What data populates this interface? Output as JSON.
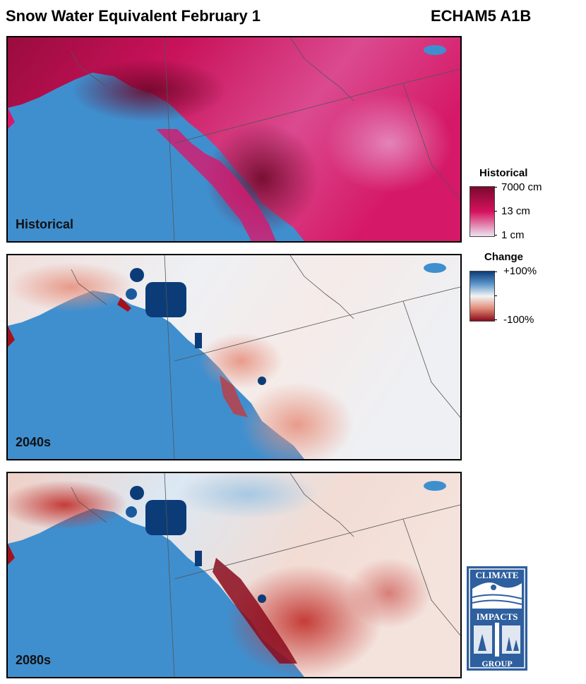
{
  "header": {
    "title": "Snow Water Equivalent February 1",
    "model": "ECHAM5 A1B"
  },
  "panels": [
    {
      "label": "Historical",
      "scale": "historical"
    },
    {
      "label": "2040s",
      "scale": "change"
    },
    {
      "label": "2080s",
      "scale": "change"
    }
  ],
  "legends": {
    "historical": {
      "title": "Historical",
      "ticks": [
        "7000 cm",
        "13 cm",
        "1 cm"
      ],
      "colors": [
        "#7a0a2e",
        "#d6115f",
        "#ece4f0"
      ]
    },
    "change": {
      "title": "Change",
      "ticks": [
        "+100%",
        "",
        "-100%"
      ],
      "colors": [
        "#0b3c78",
        "#f4f4f4",
        "#8b0b1c"
      ]
    }
  },
  "colors": {
    "ocean": "#3f8fcf",
    "hist_land": "#d9176a",
    "hist_dark": "#8a0a35",
    "hist_light": "#e080b4",
    "change_neutral": "#f3eeec",
    "change_blue": "#0b3c78",
    "change_red": "#a3111f",
    "borders": "#555555"
  },
  "logo": {
    "text_top": "CLIMATE",
    "text_mid": "IMPACTS",
    "text_bottom": "GROUP"
  }
}
